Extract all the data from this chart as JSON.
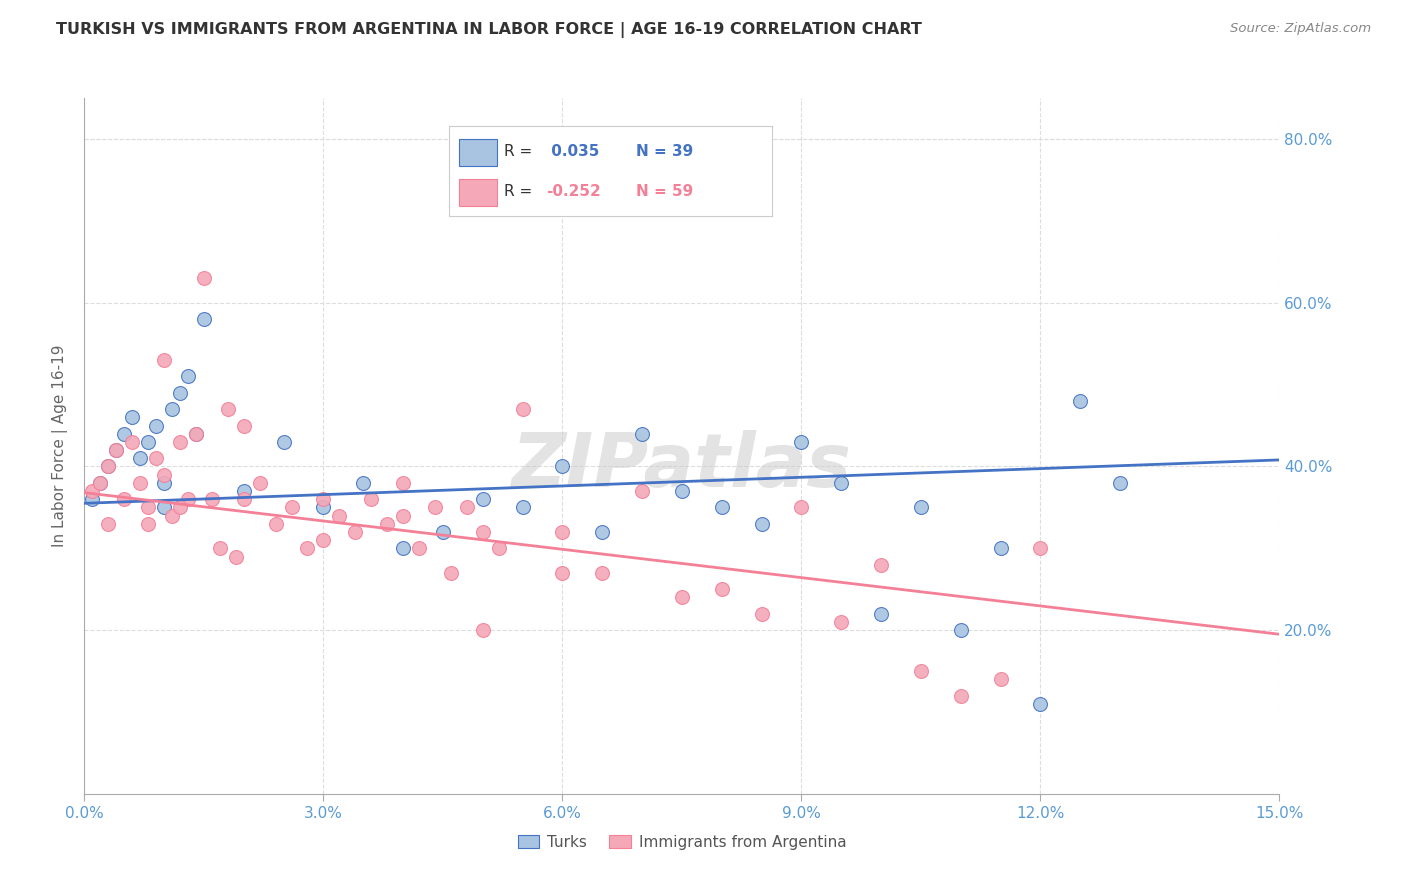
{
  "title": "TURKISH VS IMMIGRANTS FROM ARGENTINA IN LABOR FORCE | AGE 16-19 CORRELATION CHART",
  "source": "Source: ZipAtlas.com",
  "ylabel_label": "In Labor Force | Age 16-19",
  "xlim": [
    0.0,
    0.15
  ],
  "ylim": [
    0.0,
    0.85
  ],
  "xticks": [
    0.0,
    0.03,
    0.06,
    0.09,
    0.12,
    0.15
  ],
  "yticks_right": [
    0.2,
    0.4,
    0.6,
    0.8
  ],
  "turks_R": 0.035,
  "turks_N": 39,
  "argentina_R": -0.252,
  "argentina_N": 59,
  "turks_color": "#a8c4e0",
  "argentina_color": "#f4a8b8",
  "line_turks_color": "#4472c4",
  "line_argentina_color": "#f48098",
  "watermark": "ZIPatlas",
  "background_color": "#ffffff",
  "grid_color": "#dddddd",
  "axis_color": "#aaaaaa",
  "title_color": "#333333",
  "right_label_color": "#5b9bd5",
  "turks_x": [
    0.001,
    0.002,
    0.003,
    0.004,
    0.005,
    0.006,
    0.007,
    0.008,
    0.009,
    0.01,
    0.01,
    0.011,
    0.012,
    0.013,
    0.014,
    0.015,
    0.02,
    0.025,
    0.03,
    0.035,
    0.04,
    0.045,
    0.05,
    0.055,
    0.06,
    0.065,
    0.07,
    0.075,
    0.08,
    0.085,
    0.09,
    0.095,
    0.1,
    0.105,
    0.11,
    0.115,
    0.12,
    0.125,
    0.13
  ],
  "turks_y": [
    0.36,
    0.38,
    0.4,
    0.42,
    0.44,
    0.46,
    0.41,
    0.43,
    0.45,
    0.38,
    0.35,
    0.47,
    0.49,
    0.51,
    0.44,
    0.58,
    0.37,
    0.43,
    0.35,
    0.38,
    0.3,
    0.32,
    0.36,
    0.35,
    0.4,
    0.32,
    0.44,
    0.37,
    0.35,
    0.33,
    0.43,
    0.38,
    0.22,
    0.35,
    0.2,
    0.3,
    0.11,
    0.48,
    0.38
  ],
  "argentina_x": [
    0.001,
    0.002,
    0.003,
    0.004,
    0.005,
    0.006,
    0.007,
    0.008,
    0.009,
    0.01,
    0.011,
    0.012,
    0.013,
    0.014,
    0.015,
    0.016,
    0.017,
    0.018,
    0.019,
    0.02,
    0.022,
    0.024,
    0.026,
    0.028,
    0.03,
    0.032,
    0.034,
    0.036,
    0.038,
    0.04,
    0.042,
    0.044,
    0.046,
    0.048,
    0.05,
    0.052,
    0.055,
    0.06,
    0.065,
    0.07,
    0.075,
    0.08,
    0.085,
    0.09,
    0.095,
    0.1,
    0.105,
    0.11,
    0.115,
    0.12,
    0.05,
    0.06,
    0.01,
    0.02,
    0.03,
    0.04,
    0.003,
    0.008,
    0.012
  ],
  "argentina_y": [
    0.37,
    0.38,
    0.4,
    0.42,
    0.36,
    0.43,
    0.38,
    0.35,
    0.41,
    0.39,
    0.34,
    0.43,
    0.36,
    0.44,
    0.63,
    0.36,
    0.3,
    0.47,
    0.29,
    0.36,
    0.38,
    0.33,
    0.35,
    0.3,
    0.36,
    0.34,
    0.32,
    0.36,
    0.33,
    0.38,
    0.3,
    0.35,
    0.27,
    0.35,
    0.2,
    0.3,
    0.47,
    0.32,
    0.27,
    0.37,
    0.24,
    0.25,
    0.22,
    0.35,
    0.21,
    0.28,
    0.15,
    0.12,
    0.14,
    0.3,
    0.32,
    0.27,
    0.53,
    0.45,
    0.31,
    0.34,
    0.33,
    0.33,
    0.35
  ],
  "turks_line_x": [
    0.0,
    0.15
  ],
  "turks_line_y": [
    0.355,
    0.408
  ],
  "argentina_line_x": [
    0.0,
    0.15
  ],
  "argentina_line_y": [
    0.368,
    0.195
  ]
}
